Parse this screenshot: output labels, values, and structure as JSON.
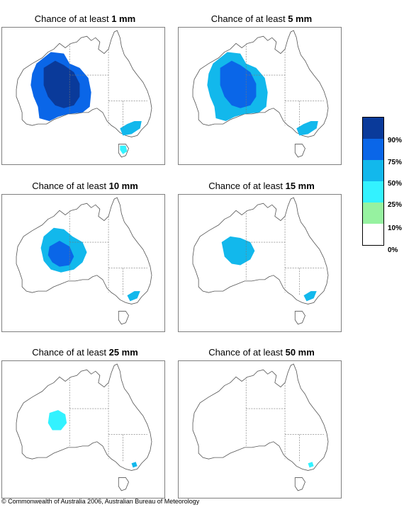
{
  "title_prefix": "Chance of at least",
  "panels": [
    {
      "threshold": "1 mm",
      "regions": [
        {
          "area": "wa-main",
          "level": "75-90"
        },
        {
          "area": "wa-core",
          "level": "90+"
        },
        {
          "area": "vic-south",
          "level": "50-75"
        },
        {
          "area": "tas",
          "level": "25-50"
        }
      ]
    },
    {
      "threshold": "5 mm",
      "regions": [
        {
          "area": "wa-main",
          "level": "50-75"
        },
        {
          "area": "wa-core",
          "level": "75-90"
        },
        {
          "area": "vic-south",
          "level": "50-75"
        }
      ]
    },
    {
      "threshold": "10 mm",
      "regions": [
        {
          "area": "wa-mid",
          "level": "50-75"
        },
        {
          "area": "wa-core-small",
          "level": "75-90"
        },
        {
          "area": "vic-south-small",
          "level": "50-75"
        }
      ]
    },
    {
      "threshold": "15 mm",
      "regions": [
        {
          "area": "wa-mid-small",
          "level": "50-75"
        },
        {
          "area": "vic-south-small",
          "level": "50-75"
        }
      ]
    },
    {
      "threshold": "25 mm",
      "regions": [
        {
          "area": "wa-small",
          "level": "25-50"
        },
        {
          "area": "vic-dot",
          "level": "50-75"
        }
      ]
    },
    {
      "threshold": "50 mm",
      "regions": [
        {
          "area": "vic-dot",
          "level": "25-50"
        }
      ]
    }
  ],
  "legend": {
    "labels": [
      "90%",
      "75%",
      "50%",
      "25%",
      "10%",
      "0%"
    ],
    "colors": [
      "#0a3a9a",
      "#0a66e8",
      "#12b8ec",
      "#33f2ff",
      "#96f2a0",
      "#ffffff"
    ]
  },
  "copyright": "© Commonwealth of Australia 2006, Australian Bureau of Meteorology"
}
